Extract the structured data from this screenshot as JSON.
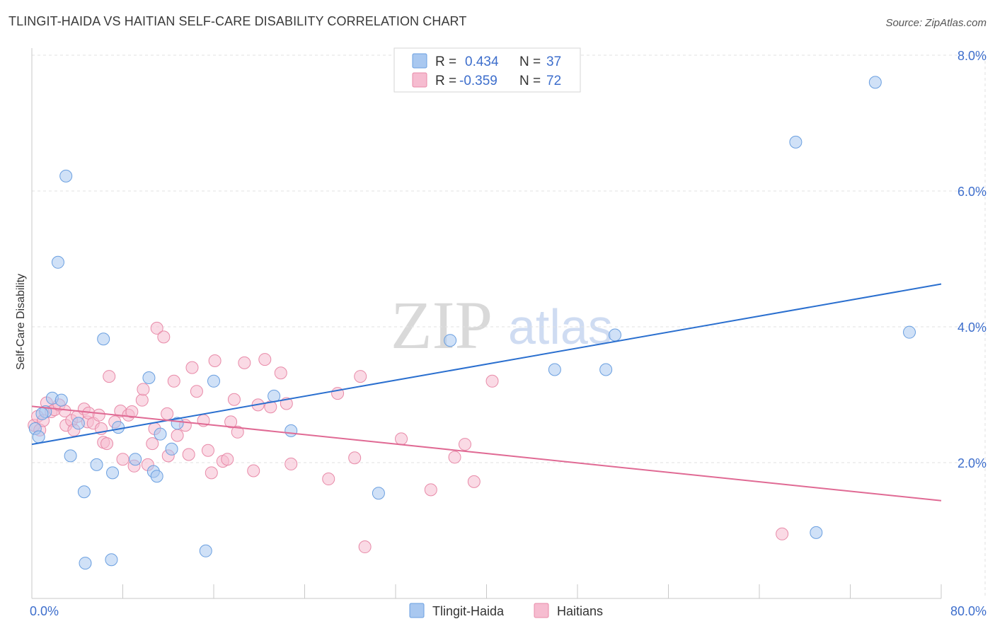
{
  "title": "TLINGIT-HAIDA VS HAITIAN SELF-CARE DISABILITY CORRELATION CHART",
  "source": "Source: ZipAtlas.com",
  "watermark": {
    "zip": "ZIP",
    "atlas": "atlas"
  },
  "colors": {
    "blue_fill": "#a9c8f0",
    "blue_stroke": "#6a9fe0",
    "blue_line": "#2a6fcf",
    "pink_fill": "#f6bcd0",
    "pink_stroke": "#e88aa8",
    "pink_line": "#e06a94",
    "grid": "#e2e2e2",
    "tick_label": "#3d6ecc"
  },
  "legend": {
    "rows": [
      {
        "r_label": "R =",
        "r_value": "0.434",
        "n_label": "N =",
        "n_value": "37",
        "series": "blue"
      },
      {
        "r_label": "R =",
        "r_value": "-0.359",
        "n_label": "N =",
        "n_value": "72",
        "series": "pink"
      }
    ]
  },
  "chart_data": {
    "type": "scatter",
    "title": "TLINGIT-HAIDA VS HAITIAN SELF-CARE DISABILITY CORRELATION CHART",
    "xlabel": "",
    "ylabel": "Self-Care Disability",
    "xlim": [
      0,
      80
    ],
    "ylim": [
      0,
      8.5
    ],
    "x_tick_labels": [
      {
        "value": 0,
        "label": "0.0%"
      },
      {
        "value": 80,
        "label": "80.0%"
      }
    ],
    "y_tick_labels": [
      {
        "value": 2,
        "label": "2.0%"
      },
      {
        "value": 4,
        "label": "4.0%"
      },
      {
        "value": 6,
        "label": "6.0%"
      },
      {
        "value": 8,
        "label": "8.0%"
      }
    ],
    "series": [
      {
        "name": "Tlingit-Haida",
        "color": "blue",
        "R": 0.434,
        "N": 37,
        "trend": [
          [
            0,
            2.27
          ],
          [
            80,
            4.63
          ]
        ],
        "points": [
          [
            0.3,
            2.5
          ],
          [
            0.6,
            2.38
          ],
          [
            1.2,
            2.75
          ],
          [
            1.8,
            2.95
          ],
          [
            2.6,
            2.92
          ],
          [
            2.3,
            4.95
          ],
          [
            3.0,
            6.22
          ],
          [
            3.4,
            2.1
          ],
          [
            4.1,
            2.58
          ],
          [
            4.6,
            1.57
          ],
          [
            4.7,
            0.52
          ],
          [
            5.7,
            1.97
          ],
          [
            6.3,
            3.82
          ],
          [
            7.0,
            0.57
          ],
          [
            7.1,
            1.85
          ],
          [
            7.6,
            2.52
          ],
          [
            9.1,
            2.05
          ],
          [
            10.3,
            3.25
          ],
          [
            10.7,
            1.87
          ],
          [
            11.0,
            1.8
          ],
          [
            11.3,
            2.42
          ],
          [
            12.3,
            2.2
          ],
          [
            12.8,
            2.58
          ],
          [
            15.3,
            0.7
          ],
          [
            16.0,
            3.2
          ],
          [
            21.3,
            2.98
          ],
          [
            22.8,
            2.47
          ],
          [
            30.5,
            1.55
          ],
          [
            36.8,
            3.8
          ],
          [
            46.0,
            3.37
          ],
          [
            50.5,
            3.37
          ],
          [
            51.3,
            3.88
          ],
          [
            67.2,
            6.72
          ],
          [
            69.0,
            0.97
          ],
          [
            74.2,
            7.6
          ],
          [
            77.2,
            3.92
          ],
          [
            0.9,
            2.72
          ]
        ]
      },
      {
        "name": "Haitians",
        "color": "pink",
        "R": -0.359,
        "N": 72,
        "trend": [
          [
            0,
            2.83
          ],
          [
            80,
            1.44
          ]
        ],
        "points": [
          [
            0.2,
            2.55
          ],
          [
            0.5,
            2.68
          ],
          [
            0.7,
            2.48
          ],
          [
            1.0,
            2.62
          ],
          [
            1.3,
            2.88
          ],
          [
            1.7,
            2.75
          ],
          [
            2.0,
            2.78
          ],
          [
            2.4,
            2.85
          ],
          [
            2.9,
            2.76
          ],
          [
            3.0,
            2.55
          ],
          [
            3.5,
            2.62
          ],
          [
            3.7,
            2.48
          ],
          [
            4.0,
            2.68
          ],
          [
            4.6,
            2.79
          ],
          [
            4.9,
            2.6
          ],
          [
            5.0,
            2.73
          ],
          [
            5.4,
            2.58
          ],
          [
            5.9,
            2.7
          ],
          [
            6.1,
            2.5
          ],
          [
            6.3,
            2.3
          ],
          [
            6.6,
            2.28
          ],
          [
            6.8,
            3.27
          ],
          [
            7.3,
            2.6
          ],
          [
            7.8,
            2.76
          ],
          [
            8.0,
            2.05
          ],
          [
            8.5,
            2.7
          ],
          [
            8.8,
            2.75
          ],
          [
            9.0,
            1.95
          ],
          [
            9.7,
            2.92
          ],
          [
            9.8,
            3.08
          ],
          [
            10.2,
            1.97
          ],
          [
            10.6,
            2.28
          ],
          [
            10.8,
            2.5
          ],
          [
            11.0,
            3.98
          ],
          [
            11.6,
            3.85
          ],
          [
            11.9,
            2.72
          ],
          [
            12.0,
            2.1
          ],
          [
            12.5,
            3.2
          ],
          [
            12.8,
            2.4
          ],
          [
            13.5,
            2.55
          ],
          [
            13.8,
            2.12
          ],
          [
            14.1,
            3.4
          ],
          [
            14.5,
            3.05
          ],
          [
            15.1,
            2.62
          ],
          [
            15.5,
            2.18
          ],
          [
            15.8,
            1.85
          ],
          [
            16.1,
            3.5
          ],
          [
            16.8,
            2.02
          ],
          [
            17.2,
            2.05
          ],
          [
            17.5,
            2.6
          ],
          [
            17.8,
            2.93
          ],
          [
            18.1,
            2.45
          ],
          [
            18.7,
            3.47
          ],
          [
            19.5,
            1.88
          ],
          [
            19.9,
            2.85
          ],
          [
            20.5,
            3.52
          ],
          [
            21.0,
            2.82
          ],
          [
            21.9,
            3.32
          ],
          [
            22.4,
            2.87
          ],
          [
            22.8,
            1.98
          ],
          [
            26.1,
            1.76
          ],
          [
            26.9,
            3.02
          ],
          [
            28.4,
            2.07
          ],
          [
            28.9,
            3.27
          ],
          [
            29.3,
            0.76
          ],
          [
            32.5,
            2.35
          ],
          [
            35.1,
            1.6
          ],
          [
            37.2,
            2.08
          ],
          [
            38.1,
            2.27
          ],
          [
            38.9,
            1.72
          ],
          [
            40.5,
            3.2
          ],
          [
            66.0,
            0.95
          ]
        ]
      }
    ],
    "legend_position": "bottom-center"
  },
  "bottom_legend": [
    {
      "label": "Tlingit-Haida",
      "series": "blue"
    },
    {
      "label": "Haitians",
      "series": "pink"
    }
  ]
}
